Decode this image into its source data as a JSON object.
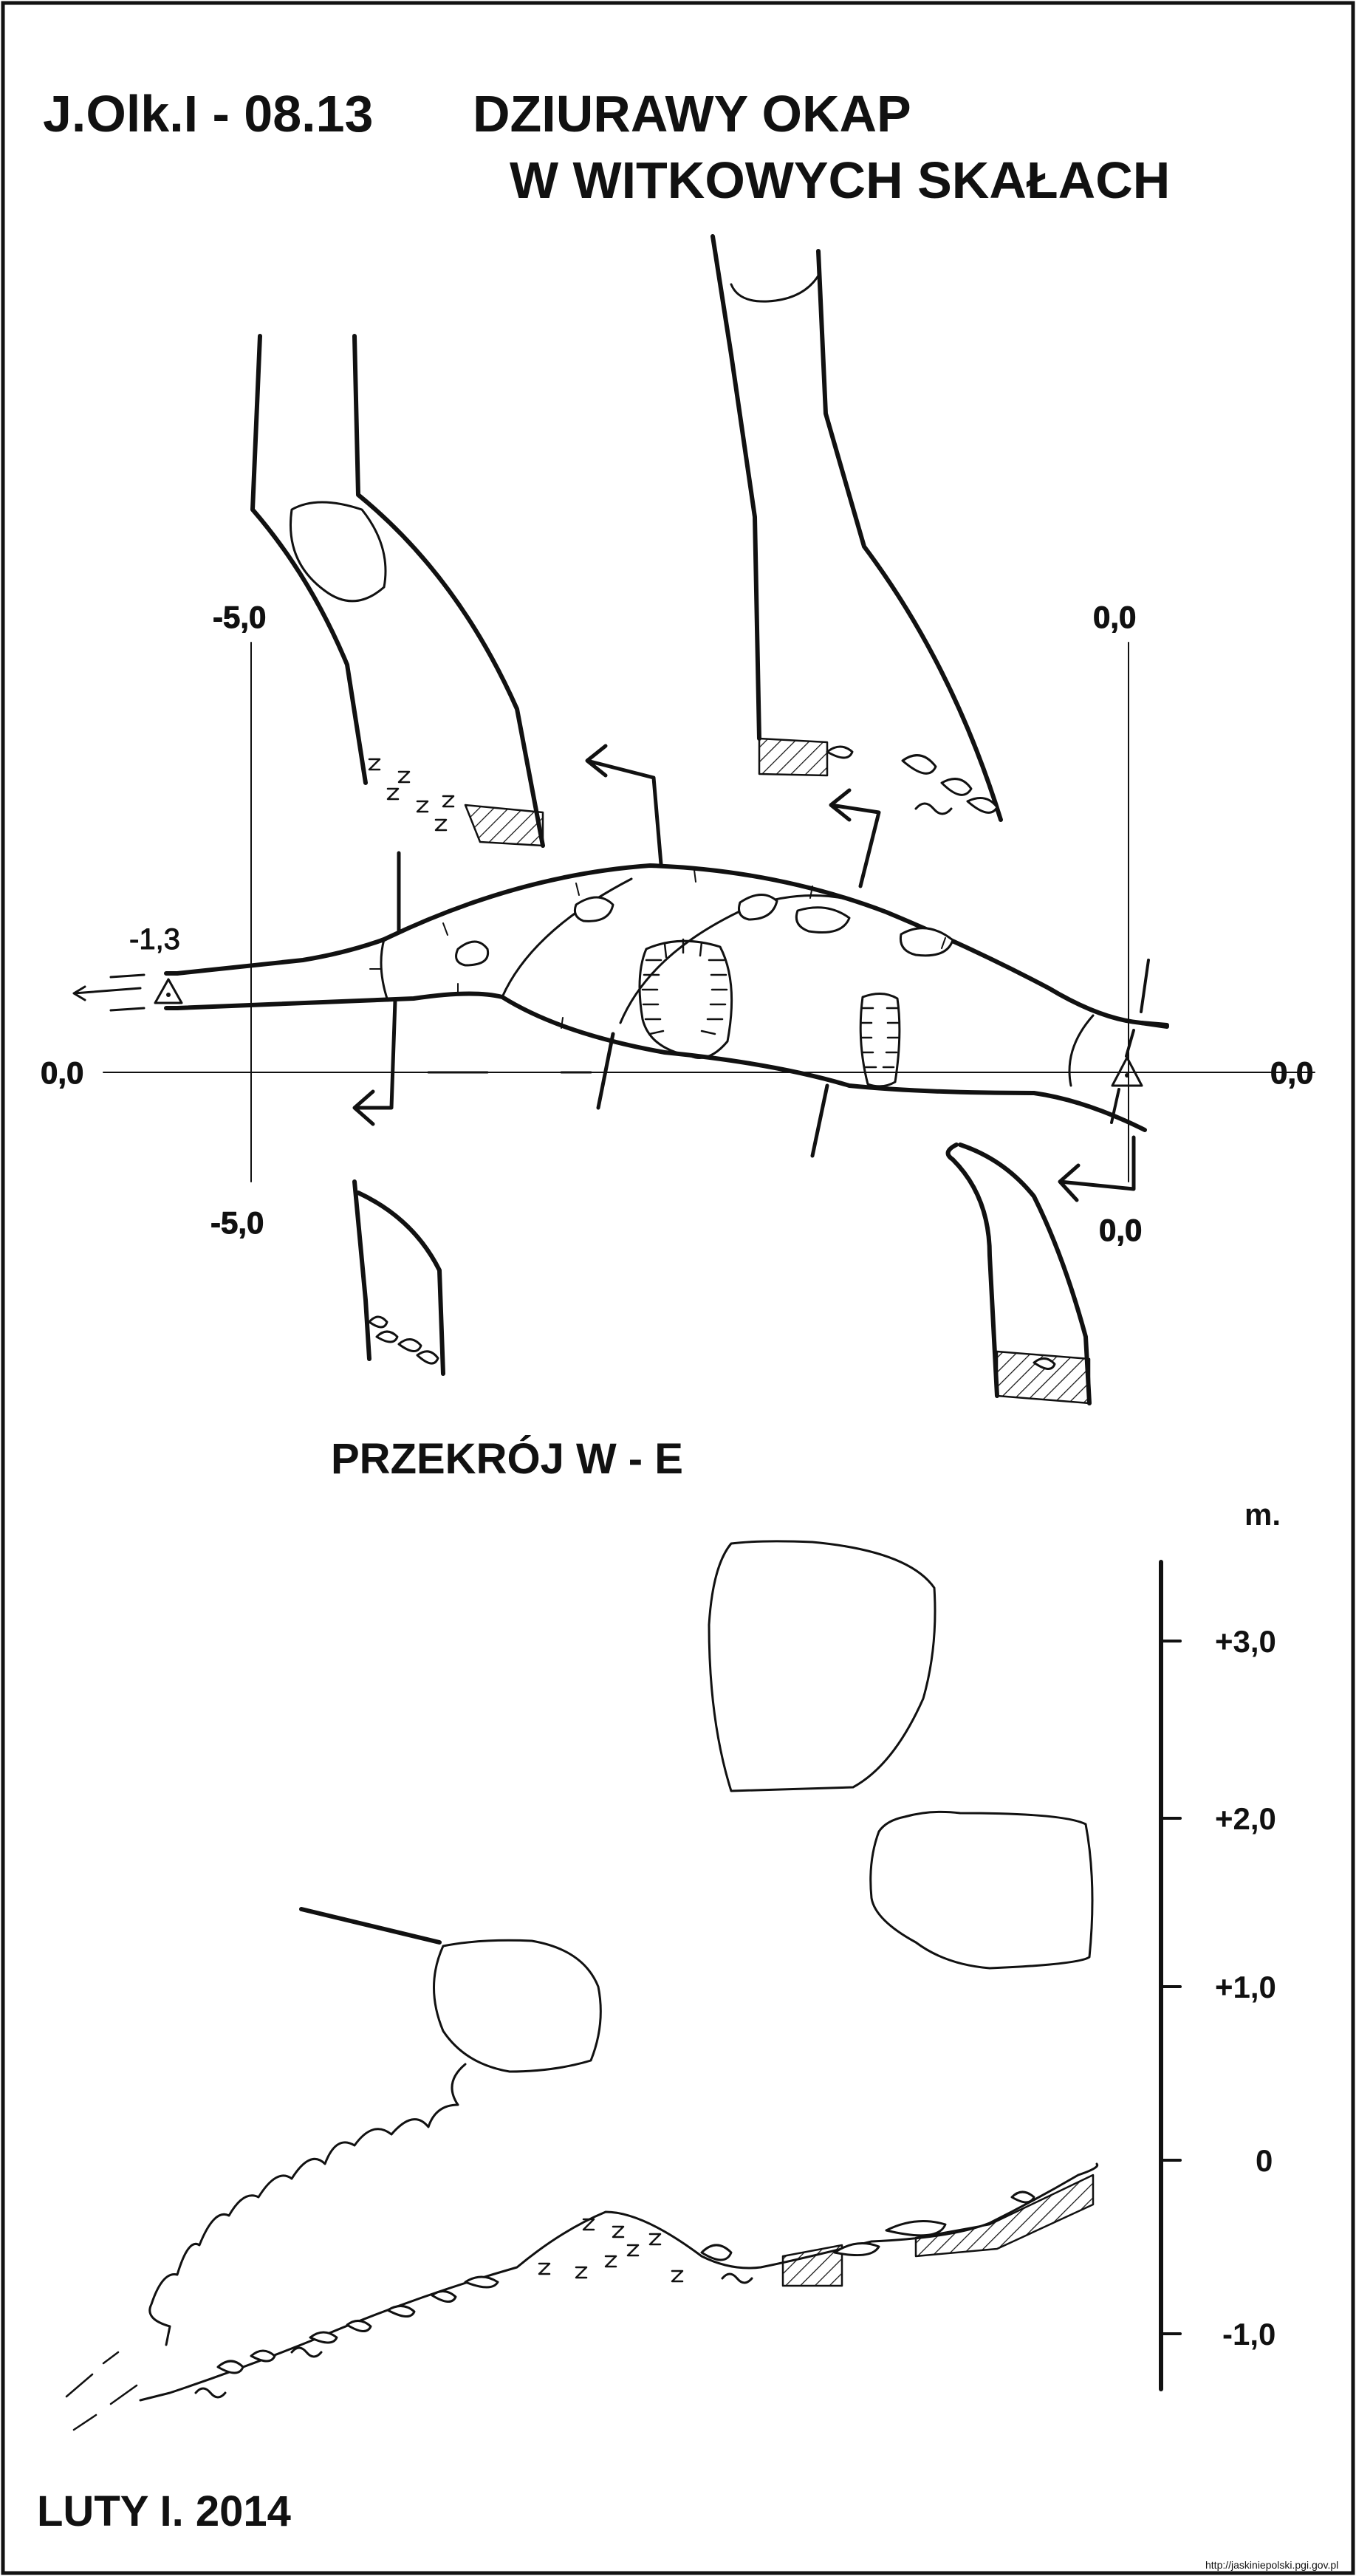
{
  "header": {
    "code": "J.Olk.I - 08.13",
    "title_line1": "DZIURAWY OKAP",
    "title_line2": "W WITKOWYCH SKAŁACH"
  },
  "plan": {
    "coord_left_top": "-5,0",
    "coord_left_bottom": "-5,0",
    "coord_right_top": "0,0",
    "coord_right_bottom": "0,0",
    "axis_left": "0,0",
    "axis_right": "0,0",
    "station_height": "-1,3"
  },
  "section": {
    "title": "PRZEKRÓJ W - E",
    "scale_unit": "m.",
    "scale_ticks": [
      "+3,0",
      "+2,0",
      "+1,0",
      "0",
      "-1,0"
    ]
  },
  "footer": {
    "date": "LUTY I. 2014",
    "source": "http://jaskiniepolski.pgi.gov.pl"
  }
}
